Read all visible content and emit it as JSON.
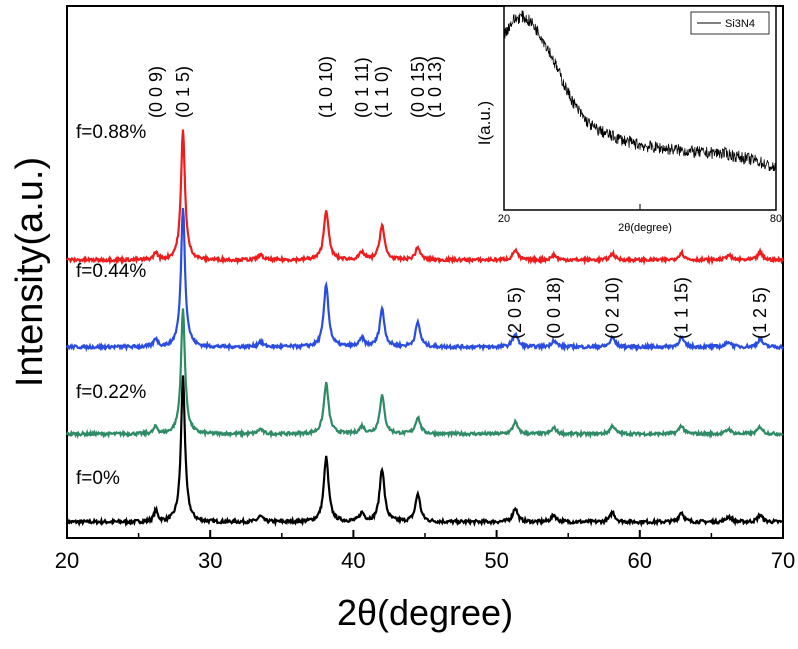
{
  "chart_data": {
    "type": "line",
    "title": "",
    "xlabel": "2θ(degree)",
    "ylabel": "Intensity(a.u.)",
    "xlim": [
      20,
      70
    ],
    "xticks": [
      "20",
      "30",
      "40",
      "50",
      "60",
      "70"
    ],
    "yticks_visible": false,
    "series": [
      {
        "name": "f=0%",
        "color": "#000000",
        "offset": 0,
        "peaks": [
          [
            26.2,
            0.08
          ],
          [
            28.1,
            1.0
          ],
          [
            33.5,
            0.04
          ],
          [
            38.1,
            0.46
          ],
          [
            40.6,
            0.06
          ],
          [
            42.0,
            0.38
          ],
          [
            44.5,
            0.2
          ],
          [
            51.3,
            0.1
          ],
          [
            54.0,
            0.05
          ],
          [
            58.1,
            0.07
          ],
          [
            62.9,
            0.07
          ],
          [
            66.2,
            0.04
          ],
          [
            68.4,
            0.05
          ]
        ]
      },
      {
        "name": "f=0.22%",
        "color": "#2e8b66",
        "offset": 1,
        "peaks": [
          [
            26.2,
            0.06
          ],
          [
            28.1,
            1.0
          ],
          [
            33.5,
            0.04
          ],
          [
            38.1,
            0.42
          ],
          [
            40.6,
            0.06
          ],
          [
            42.0,
            0.32
          ],
          [
            44.5,
            0.14
          ],
          [
            51.3,
            0.1
          ],
          [
            54.0,
            0.05
          ],
          [
            58.1,
            0.07
          ],
          [
            62.9,
            0.07
          ],
          [
            66.2,
            0.04
          ],
          [
            68.4,
            0.06
          ]
        ]
      },
      {
        "name": "f=0.44%",
        "color": "#2a4de0",
        "offset": 2,
        "peaks": [
          [
            26.2,
            0.06
          ],
          [
            28.1,
            1.0
          ],
          [
            33.5,
            0.04
          ],
          [
            38.1,
            0.46
          ],
          [
            40.6,
            0.06
          ],
          [
            42.0,
            0.28
          ],
          [
            44.5,
            0.18
          ],
          [
            51.3,
            0.1
          ],
          [
            54.0,
            0.05
          ],
          [
            58.1,
            0.07
          ],
          [
            62.9,
            0.07
          ],
          [
            66.2,
            0.04
          ],
          [
            68.4,
            0.06
          ]
        ]
      },
      {
        "name": "f=0.88%",
        "color": "#ee1c1c",
        "offset": 3,
        "peaks": [
          [
            26.2,
            0.06
          ],
          [
            28.1,
            1.0
          ],
          [
            33.5,
            0.04
          ],
          [
            38.1,
            0.4
          ],
          [
            40.6,
            0.06
          ],
          [
            42.0,
            0.28
          ],
          [
            44.5,
            0.1
          ],
          [
            51.3,
            0.08
          ],
          [
            54.0,
            0.04
          ],
          [
            58.1,
            0.05
          ],
          [
            62.9,
            0.06
          ],
          [
            66.2,
            0.04
          ],
          [
            68.4,
            0.06
          ]
        ]
      }
    ],
    "peak_labels": [
      {
        "text": "(0 0 9)",
        "x": 26.2,
        "level": 3
      },
      {
        "text": "(0 1 5)",
        "x": 28.1,
        "level": 3
      },
      {
        "text": "(1 0 10)",
        "x": 38.1,
        "level": 3
      },
      {
        "text": "(0 1 11)",
        "x": 40.6,
        "level": 3
      },
      {
        "text": "(1 1 0)",
        "x": 42.0,
        "level": 3
      },
      {
        "text": "(0 0 15)",
        "x": 44.5,
        "level": 3
      },
      {
        "text": "(1 0 13)",
        "x": 45.7,
        "level": 3
      },
      {
        "text": "(2 0 5)",
        "x": 51.3,
        "level": 2
      },
      {
        "text": "(0 0 18)",
        "x": 54.0,
        "level": 2
      },
      {
        "text": "(0 2 10)",
        "x": 58.1,
        "level": 2
      },
      {
        "text": "(1 1 15)",
        "x": 62.9,
        "level": 2
      },
      {
        "text": "(1 2 5)",
        "x": 68.4,
        "level": 2
      }
    ],
    "inset": {
      "type": "line",
      "legend": "Si3N4",
      "ylabel": "I(a.u.)",
      "xlabel": "2θ(degree)",
      "xlim": [
        20,
        80
      ],
      "xticks": [
        "20",
        "80"
      ],
      "x": [
        20,
        22,
        24,
        26,
        28,
        30,
        32,
        34,
        36,
        38,
        40,
        44,
        48,
        52,
        56,
        60,
        64,
        68,
        72,
        76,
        80
      ],
      "y": [
        0.86,
        0.93,
        0.95,
        0.92,
        0.86,
        0.78,
        0.68,
        0.58,
        0.5,
        0.44,
        0.4,
        0.36,
        0.33,
        0.31,
        0.3,
        0.29,
        0.28,
        0.28,
        0.26,
        0.24,
        0.2
      ]
    }
  }
}
